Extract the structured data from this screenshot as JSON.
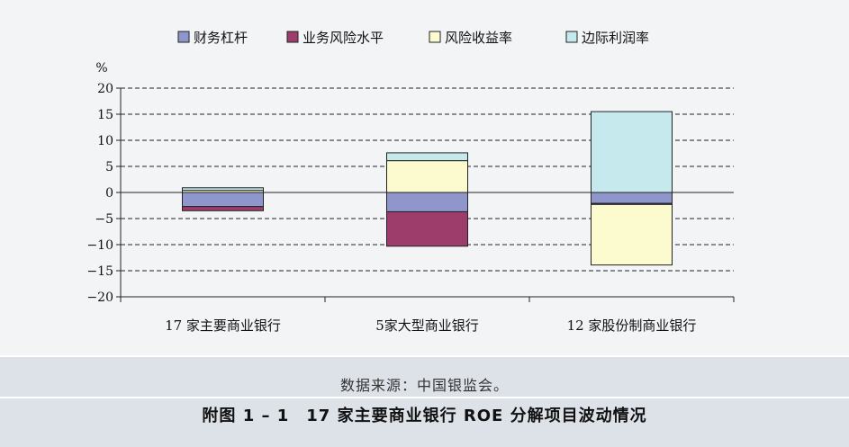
{
  "chart_data": {
    "type": "bar",
    "stacked": true,
    "ylabel": "%",
    "ylim": [
      -20,
      20
    ],
    "yticks": [
      20,
      15,
      10,
      5,
      0,
      -5,
      -10,
      -15,
      -20
    ],
    "ytick_labels": [
      "20",
      "15",
      "10",
      "5",
      "0",
      "−5",
      "−10",
      "−15",
      "−20"
    ],
    "grid": "dashed",
    "legend_position": "top",
    "categories": [
      "17 家主要商业银行",
      "5家大型商业银行",
      "12 家股份制商业银行"
    ],
    "series": [
      {
        "name": "财务杠杆",
        "color": "#8e96cc",
        "values": [
          -2.7,
          -3.7,
          -2.1
        ]
      },
      {
        "name": "业务风险水平",
        "color": "#9c3d6b",
        "values": [
          -0.8,
          -6.6,
          -0.2
        ]
      },
      {
        "name": "风险收益率",
        "color": "#fbfbcf",
        "values": [
          0.4,
          6.1,
          -11.6
        ]
      },
      {
        "name": "边际利润率",
        "color": "#c6e9ee",
        "values": [
          0.5,
          1.5,
          15.5
        ]
      }
    ]
  },
  "caption": {
    "source": "数据来源：中国银监会。",
    "title": "附图 1 – 1　17 家主要商业银行 ROE 分解项目波动情况"
  }
}
